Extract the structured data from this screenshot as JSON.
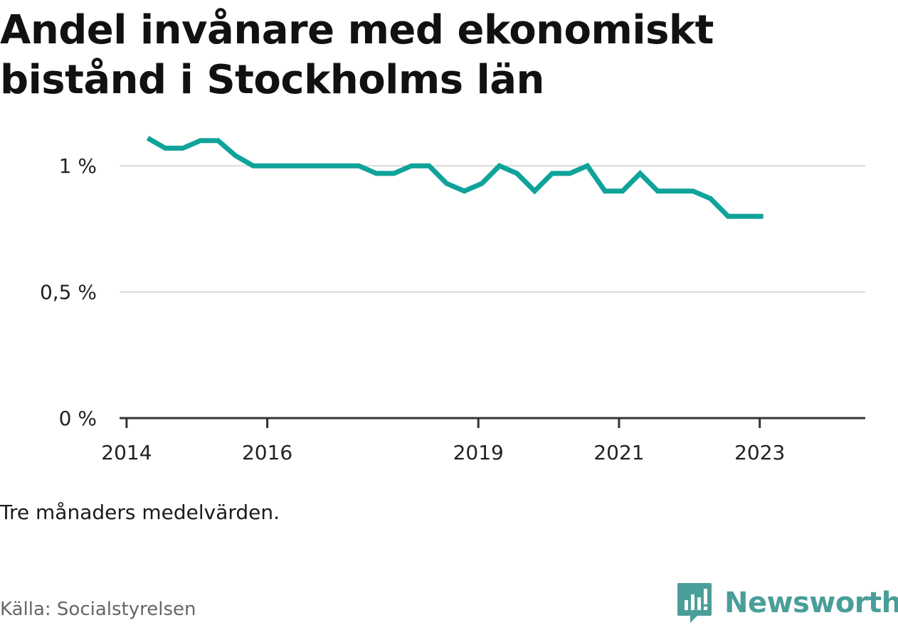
{
  "title": "Andel invånare med ekonomiskt bistånd i Stockholms län",
  "note": "Tre månaders medelvärden.",
  "source": "Källa: Socialstyrelsen",
  "brand": {
    "name": "Newsworthy",
    "icon": "newsworthy-logo-icon",
    "color": "#4a9e99"
  },
  "chart_data": {
    "type": "line",
    "title": "Andel invånare med ekonomiskt bistånd i Stockholms län",
    "xlabel": "",
    "ylabel": "",
    "x_ticks": [
      2014,
      2016,
      2019,
      2021,
      2023
    ],
    "y_ticks": [
      {
        "value": 0,
        "label": "0 %"
      },
      {
        "value": 0.5,
        "label": "0,5 %"
      },
      {
        "value": 1,
        "label": "1 %"
      }
    ],
    "ylim": [
      0,
      1.15
    ],
    "xlim": [
      2013.9,
      2024.5
    ],
    "grid": true,
    "line_color": "#0fa39a",
    "series": [
      {
        "x": [
          2014.3,
          2014.55,
          2014.8,
          2015.05,
          2015.3,
          2015.55,
          2015.8,
          2016.05,
          2016.3,
          2016.55,
          2016.8,
          2017.05,
          2017.3,
          2017.55,
          2017.8,
          2018.05,
          2018.3,
          2018.55,
          2018.8,
          2019.05,
          2019.3,
          2019.55,
          2019.8,
          2020.05,
          2020.3,
          2020.55,
          2020.8,
          2021.05,
          2021.3,
          2021.55,
          2021.8,
          2022.05,
          2022.3,
          2022.55,
          2022.8,
          2023.05
        ],
        "values": [
          1.11,
          1.07,
          1.07,
          1.1,
          1.1,
          1.04,
          1.0,
          1.0,
          1.0,
          1.0,
          1.0,
          1.0,
          1.0,
          0.97,
          0.97,
          1.0,
          1.0,
          0.93,
          0.9,
          0.93,
          1.0,
          0.97,
          0.9,
          0.97,
          0.97,
          1.0,
          0.9,
          0.9,
          0.97,
          0.9,
          0.9,
          0.9,
          0.87,
          0.8,
          0.8,
          0.8
        ]
      }
    ]
  }
}
